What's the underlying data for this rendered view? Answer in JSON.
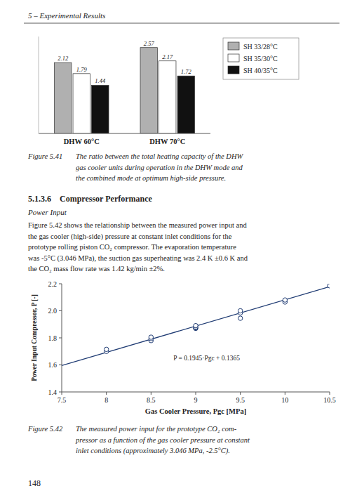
{
  "page": {
    "header": "5 – Experimental Results",
    "page_number": "148",
    "section_title": "5.1.3.6    Compressor Performance",
    "subsection_title": "Power Input",
    "body": [
      "Figure 5.42 shows the relationship between the measured power input and",
      "the gas cooler (high-side) pressure at constant inlet conditions for the",
      "prototype rolling piston CO₂ compressor. The evaporation temperature",
      "was -5°C (3.046 MPa), the suction gas superheating was 2.4 K ±0.6 K and",
      "the CO₂ mass flow rate was 1.42 kg/min ±2%."
    ],
    "captions": [
      {
        "label": "Figure 5.41",
        "lines": [
          "The ratio between the total heating capacity of the DHW",
          "gas cooler units during operation in the DHW mode and",
          "the combined mode at optimum high-side pressure."
        ]
      },
      {
        "label": "Figure 5.42",
        "lines": [
          "The measured power input for the prototype CO₂ com-",
          "pressor as a function of the gas cooler pressure at constant",
          "inlet conditions (approximately 3.046 MPa, -2.5°C)."
        ]
      }
    ]
  },
  "chart_data": [
    {
      "type": "bar",
      "categories": [
        "DHW 60°C",
        "DHW 70°C"
      ],
      "series": [
        {
          "name": "SH 33/28°C",
          "color": "#b0b0b0",
          "values": [
            2.12,
            2.57
          ]
        },
        {
          "name": "SH 35/30°C",
          "color": "#ffffff",
          "values": [
            1.79,
            2.17
          ]
        },
        {
          "name": "SH 40/35°C",
          "color": "#111111",
          "values": [
            1.44,
            1.72
          ]
        }
      ],
      "ylim": [
        0,
        2.9
      ],
      "tick_labels": "x",
      "data_labels": true,
      "legend": "right"
    },
    {
      "type": "scatter",
      "xlabel": "Gas Cooler Pressure, Pgc [MPa]",
      "ylabel": "Power Input Compressor, P [-]",
      "series": [
        {
          "type": "scatter",
          "marker": "circle",
          "x": [
            8,
            8,
            8.5,
            8.5,
            8.5,
            9,
            9,
            9,
            9,
            9.5,
            9.5,
            9.5,
            10,
            10,
            10.5
          ],
          "values": [
            1.7,
            1.715,
            1.78,
            1.795,
            1.805,
            1.87,
            1.875,
            1.88,
            1.89,
            1.985,
            2.0,
            1.945,
            2.065,
            2.08,
            2.185
          ]
        },
        {
          "type": "line",
          "line_style": "solid",
          "x": [
            7.5,
            10.5
          ],
          "values": [
            1.59525,
            2.17875
          ]
        }
      ],
      "xlim": [
        7.5,
        10.5
      ],
      "ylim": [
        1.4,
        2.2
      ],
      "xticks": [
        7.5,
        8,
        8.5,
        9,
        9.5,
        10,
        10.5
      ],
      "yticks": [
        1.4,
        1.6,
        1.8,
        {
          "value": 2,
          "label": "2.0"
        },
        2.2
      ],
      "annotations": [
        {
          "text": "P = 0.1945·Pgc + 0.1365",
          "x": 8.75,
          "y": 1.636
        }
      ],
      "grid": false
    }
  ]
}
